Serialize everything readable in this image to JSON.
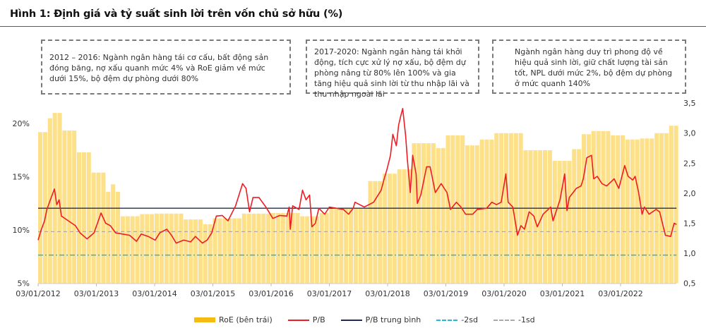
{
  "title": "Hình 1: Định giá và tỷ suất sinh lời trên vốn chủ sở hữu (%)",
  "notes": [
    "2012 – 2016: Ngành ngân hàng tái cơ cấu, bất động sản đóng băng, nợ xấu quanh mức 4% và RoE giảm về mức dưới 15%, bộ đệm dự phòng dưới 80%",
    "2017-2020: Ngành ngân hàng tái khởi động, tích cực xử lý nợ xấu, bộ đệm dự phòng nâng từ 80% lên 100% và gia tăng hiệu quả sinh lời từ thu nhập lãi và thu nhập ngoài lãi",
    "Ngành ngân hàng duy trì phong độ về hiệu quả sinh lời, giữ chất lượng tài sản tốt, NPL dưới mức 2%, bộ đệm dự phòng ở mức quanh 140%"
  ],
  "colors": {
    "roe": "#fde08a",
    "roe_legend": "#f5bb12",
    "pb": "#ee1c25",
    "mean": "#1f2d52",
    "sd2": "#29b6d6",
    "sd1": "#9e9e9e",
    "title_rule": "#e31e24"
  },
  "chart_data": {
    "type": "bar+line",
    "title": "Hình 1: Định giá và tỷ suất sinh lời trên vốn chủ sở hữu (%)",
    "x_ticks": [
      "03/01/2012",
      "03/01/2013",
      "03/01/2014",
      "03/01/2015",
      "03/01/2016",
      "03/01/2017",
      "03/01/2018",
      "03/01/2019",
      "03/01/2020",
      "03/01/2021",
      "03/01/2022"
    ],
    "x_range_years": [
      2012.0,
      2022.96
    ],
    "y_left": {
      "ticks": [
        "5%",
        "10%",
        "15%",
        "20%"
      ],
      "range": [
        5,
        21.7
      ]
    },
    "y_right": {
      "ticks": [
        "0,5",
        "1,0",
        "1,5",
        "2,0",
        "2,5",
        "3,0",
        "3,5"
      ],
      "range": [
        0.5,
        3.5
      ]
    },
    "legend": [
      "RoE (bên trái)",
      "P/B",
      "P/B trung bình",
      "-2sd",
      "-1sd"
    ],
    "legend_position": "bottom",
    "roe_steps": [
      [
        2012.0,
        19.2
      ],
      [
        2012.15,
        20.5
      ],
      [
        2012.2,
        21.0
      ],
      [
        2012.36,
        19.35
      ],
      [
        2012.6,
        17.3
      ],
      [
        2012.85,
        15.4
      ],
      [
        2013.1,
        13.6
      ],
      [
        2013.22,
        14.3
      ],
      [
        2013.32,
        13.6
      ],
      [
        2013.36,
        11.3
      ],
      [
        2013.7,
        11.5
      ],
      [
        2014.0,
        11.55
      ],
      [
        2014.5,
        11.0
      ],
      [
        2014.8,
        10.55
      ],
      [
        2014.95,
        10.2
      ],
      [
        2015.0,
        11.1
      ],
      [
        2015.5,
        11.55
      ],
      [
        2016.0,
        11.6
      ],
      [
        2016.5,
        11.3
      ],
      [
        2016.8,
        11.6
      ],
      [
        2017.0,
        12.0
      ],
      [
        2017.6,
        14.6
      ],
      [
        2017.9,
        15.3
      ],
      [
        2018.1,
        15.7
      ],
      [
        2018.4,
        18.15
      ],
      [
        2018.8,
        17.7
      ],
      [
        2019.0,
        18.9
      ],
      [
        2019.3,
        17.95
      ],
      [
        2019.55,
        18.5
      ],
      [
        2019.8,
        19.1
      ],
      [
        2020.3,
        17.5
      ],
      [
        2020.8,
        16.5
      ],
      [
        2021.1,
        17.6
      ],
      [
        2021.3,
        19.0
      ],
      [
        2021.5,
        19.3
      ],
      [
        2021.8,
        18.9
      ],
      [
        2022.05,
        18.5
      ],
      [
        2022.28,
        18.6
      ],
      [
        2022.54,
        19.1
      ],
      [
        2022.8,
        19.8
      ]
    ],
    "pb": [
      [
        2012.0,
        1.22
      ],
      [
        2012.05,
        1.38
      ],
      [
        2012.11,
        1.54
      ],
      [
        2012.15,
        1.73
      ],
      [
        2012.21,
        1.89
      ],
      [
        2012.28,
        2.07
      ],
      [
        2012.32,
        1.81
      ],
      [
        2012.36,
        1.89
      ],
      [
        2012.4,
        1.62
      ],
      [
        2012.52,
        1.54
      ],
      [
        2012.64,
        1.46
      ],
      [
        2012.72,
        1.34
      ],
      [
        2012.84,
        1.24
      ],
      [
        2012.96,
        1.34
      ],
      [
        2013.08,
        1.67
      ],
      [
        2013.16,
        1.5
      ],
      [
        2013.24,
        1.46
      ],
      [
        2013.33,
        1.34
      ],
      [
        2013.45,
        1.32
      ],
      [
        2013.57,
        1.3
      ],
      [
        2013.69,
        1.2
      ],
      [
        2013.77,
        1.32
      ],
      [
        2013.89,
        1.28
      ],
      [
        2014.01,
        1.22
      ],
      [
        2014.09,
        1.34
      ],
      [
        2014.21,
        1.4
      ],
      [
        2014.29,
        1.3
      ],
      [
        2014.37,
        1.17
      ],
      [
        2014.5,
        1.22
      ],
      [
        2014.62,
        1.19
      ],
      [
        2014.7,
        1.28
      ],
      [
        2014.82,
        1.17
      ],
      [
        2014.9,
        1.22
      ],
      [
        2014.98,
        1.34
      ],
      [
        2015.06,
        1.62
      ],
      [
        2015.16,
        1.63
      ],
      [
        2015.26,
        1.54
      ],
      [
        2015.39,
        1.79
      ],
      [
        2015.51,
        2.16
      ],
      [
        2015.57,
        2.08
      ],
      [
        2015.63,
        1.69
      ],
      [
        2015.69,
        1.93
      ],
      [
        2015.79,
        1.93
      ],
      [
        2015.91,
        1.77
      ],
      [
        2016.03,
        1.58
      ],
      [
        2016.15,
        1.63
      ],
      [
        2016.27,
        1.62
      ],
      [
        2016.31,
        1.77
      ],
      [
        2016.33,
        1.4
      ],
      [
        2016.37,
        1.79
      ],
      [
        2016.48,
        1.73
      ],
      [
        2016.54,
        2.05
      ],
      [
        2016.6,
        1.89
      ],
      [
        2016.66,
        1.97
      ],
      [
        2016.7,
        1.44
      ],
      [
        2016.76,
        1.5
      ],
      [
        2016.82,
        1.75
      ],
      [
        2016.92,
        1.65
      ],
      [
        2017.0,
        1.77
      ],
      [
        2017.12,
        1.75
      ],
      [
        2017.24,
        1.73
      ],
      [
        2017.33,
        1.65
      ],
      [
        2017.41,
        1.75
      ],
      [
        2017.44,
        1.85
      ],
      [
        2017.6,
        1.77
      ],
      [
        2017.76,
        1.85
      ],
      [
        2017.89,
        2.05
      ],
      [
        2017.93,
        2.2
      ],
      [
        2017.99,
        2.4
      ],
      [
        2018.05,
        2.63
      ],
      [
        2018.09,
        2.98
      ],
      [
        2018.15,
        2.79
      ],
      [
        2018.19,
        3.14
      ],
      [
        2018.23,
        3.3
      ],
      [
        2018.26,
        3.41
      ],
      [
        2018.31,
        2.95
      ],
      [
        2018.34,
        2.56
      ],
      [
        2018.39,
        2.01
      ],
      [
        2018.43,
        2.63
      ],
      [
        2018.49,
        2.32
      ],
      [
        2018.51,
        1.83
      ],
      [
        2018.57,
        1.97
      ],
      [
        2018.67,
        2.44
      ],
      [
        2018.73,
        2.44
      ],
      [
        2018.82,
        2.01
      ],
      [
        2018.92,
        2.16
      ],
      [
        2019.02,
        2.01
      ],
      [
        2019.08,
        1.73
      ],
      [
        2019.18,
        1.85
      ],
      [
        2019.26,
        1.77
      ],
      [
        2019.34,
        1.65
      ],
      [
        2019.46,
        1.65
      ],
      [
        2019.54,
        1.73
      ],
      [
        2019.7,
        1.75
      ],
      [
        2019.79,
        1.85
      ],
      [
        2019.87,
        1.81
      ],
      [
        2019.95,
        1.85
      ],
      [
        2020.03,
        2.32
      ],
      [
        2020.07,
        1.85
      ],
      [
        2020.15,
        1.77
      ],
      [
        2020.23,
        1.3
      ],
      [
        2020.29,
        1.46
      ],
      [
        2020.35,
        1.4
      ],
      [
        2020.43,
        1.69
      ],
      [
        2020.51,
        1.62
      ],
      [
        2020.57,
        1.44
      ],
      [
        2020.67,
        1.65
      ],
      [
        2020.8,
        1.77
      ],
      [
        2020.84,
        1.54
      ],
      [
        2020.96,
        1.89
      ],
      [
        2021.04,
        2.32
      ],
      [
        2021.08,
        1.71
      ],
      [
        2021.12,
        1.93
      ],
      [
        2021.24,
        2.08
      ],
      [
        2021.32,
        2.12
      ],
      [
        2021.36,
        2.24
      ],
      [
        2021.42,
        2.59
      ],
      [
        2021.5,
        2.63
      ],
      [
        2021.54,
        2.24
      ],
      [
        2021.6,
        2.28
      ],
      [
        2021.68,
        2.16
      ],
      [
        2021.76,
        2.12
      ],
      [
        2021.89,
        2.24
      ],
      [
        2021.97,
        2.08
      ],
      [
        2022.07,
        2.46
      ],
      [
        2022.13,
        2.28
      ],
      [
        2022.21,
        2.22
      ],
      [
        2022.25,
        2.28
      ],
      [
        2022.31,
        2.01
      ],
      [
        2022.37,
        1.65
      ],
      [
        2022.41,
        1.77
      ],
      [
        2022.49,
        1.65
      ],
      [
        2022.61,
        1.73
      ],
      [
        2022.67,
        1.69
      ],
      [
        2022.77,
        1.3
      ],
      [
        2022.86,
        1.28
      ],
      [
        2022.92,
        1.5
      ],
      [
        2022.96,
        1.48
      ]
    ],
    "pb_mean": 1.75,
    "pb_minus_1sd": 1.36,
    "pb_minus_2sd": 0.97
  }
}
